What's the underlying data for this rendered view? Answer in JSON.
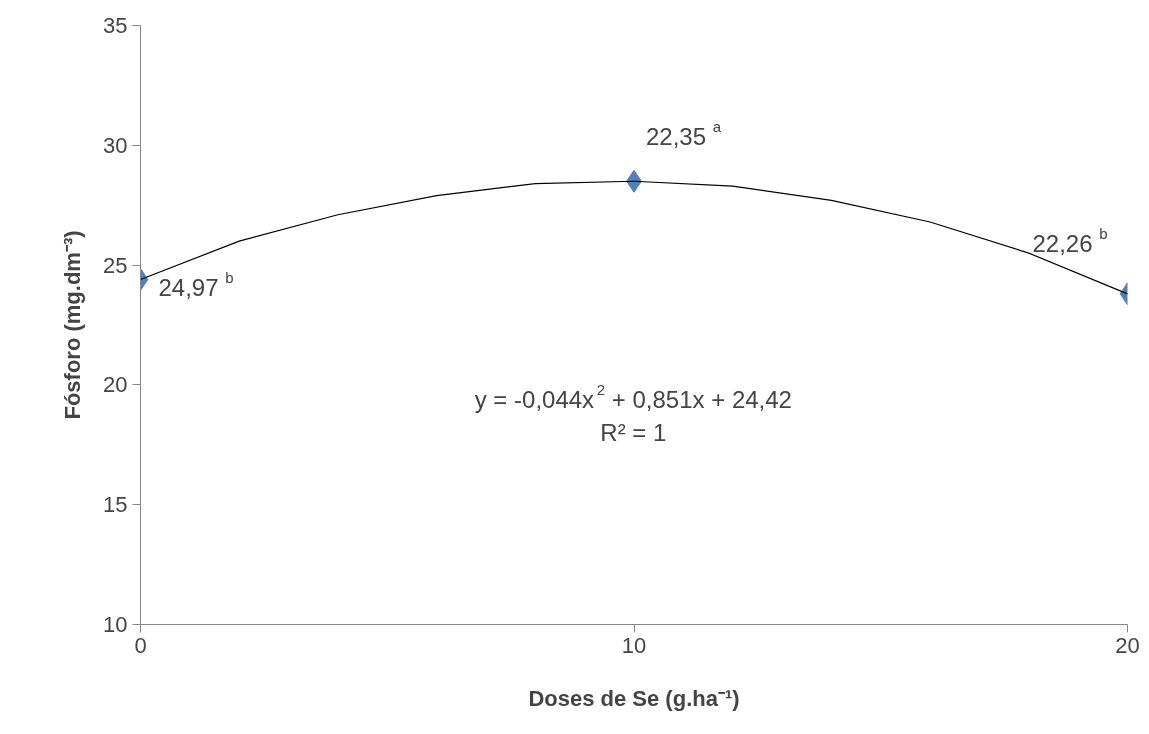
{
  "chart_data": {
    "type": "scatter",
    "xlabel": "Doses de Se (g.ha⁻¹)",
    "ylabel": "Fósforo (mg.dm⁻³)",
    "xlim": [
      0,
      20
    ],
    "xticks": [
      0,
      10,
      20
    ],
    "ylim": [
      10,
      35
    ],
    "yticks": [
      10,
      15,
      20,
      25,
      30,
      35
    ],
    "grid": false,
    "series": [
      {
        "color": "#4f81bd",
        "marker": "diamond",
        "x": [
          0,
          10,
          20
        ],
        "values": [
          24.4,
          28.5,
          23.8
        ]
      },
      {
        "type": "line",
        "color": "#000000",
        "marker": "none",
        "x": [
          0,
          2,
          4,
          6,
          8,
          10,
          12,
          14,
          16,
          18,
          20
        ],
        "values": [
          24.4,
          26.0,
          27.1,
          27.9,
          28.4,
          28.5,
          28.3,
          27.7,
          26.8,
          25.5,
          23.8
        ]
      }
    ],
    "annotations": [
      {
        "text": "24,97 $^{b}$",
        "x": 0,
        "y": 24.4
      },
      {
        "text": "22,35 $^{a}$",
        "x": 10,
        "y": 28.5
      },
      {
        "text": "22,26 $^{b}$",
        "x": 20,
        "y": 23.8
      },
      "y = -0,044x$^{2}$ + 0,851x + 24,42",
      "R² = 1"
    ]
  }
}
